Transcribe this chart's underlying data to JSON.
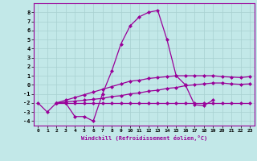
{
  "xlabel": "Windchill (Refroidissement éolien,°C)",
  "background_color": "#c2e8e8",
  "grid_color": "#a8d0d0",
  "line_color": "#990099",
  "xlim": [
    -0.5,
    23.5
  ],
  "ylim": [
    -4.5,
    9.0
  ],
  "xticks": [
    0,
    1,
    2,
    3,
    4,
    5,
    6,
    7,
    8,
    9,
    10,
    11,
    12,
    13,
    14,
    15,
    16,
    17,
    18,
    19,
    20,
    21,
    22,
    23
  ],
  "yticks": [
    -4,
    -3,
    -2,
    -1,
    0,
    1,
    2,
    3,
    4,
    5,
    6,
    7,
    8
  ],
  "series1_x": [
    0,
    1,
    2,
    3,
    4,
    5,
    6,
    7,
    8,
    9,
    10,
    11,
    12,
    13,
    14,
    15,
    16,
    17,
    18,
    19
  ],
  "series1_y": [
    -2.0,
    -3.0,
    -2.0,
    -2.0,
    -3.5,
    -3.5,
    -4.0,
    -1.0,
    1.5,
    4.5,
    6.5,
    7.5,
    8.0,
    8.2,
    5.0,
    1.0,
    0.0,
    -2.2,
    -2.3,
    -1.7
  ],
  "series2_x": [
    2,
    3,
    4,
    5,
    6,
    7,
    8,
    9,
    10,
    11,
    12,
    13,
    14,
    15,
    16,
    17,
    18,
    19,
    20,
    21,
    22,
    23
  ],
  "series2_y": [
    -2.0,
    -2.0,
    -2.0,
    -2.0,
    -2.0,
    -2.0,
    -2.0,
    -2.0,
    -2.0,
    -2.0,
    -2.0,
    -2.0,
    -2.0,
    -2.0,
    -2.0,
    -2.0,
    -2.0,
    -2.0,
    -2.0,
    -2.0,
    -2.0,
    -2.0
  ],
  "series3_x": [
    2,
    3,
    4,
    5,
    6,
    7,
    8,
    9,
    10,
    11,
    12,
    13,
    14,
    15,
    16,
    17,
    18,
    19,
    20,
    21,
    22,
    23
  ],
  "series3_y": [
    -2.0,
    -1.9,
    -1.8,
    -1.7,
    -1.6,
    -1.5,
    -1.3,
    -1.2,
    -1.0,
    -0.9,
    -0.7,
    -0.6,
    -0.4,
    -0.3,
    -0.1,
    0.0,
    0.1,
    0.2,
    0.2,
    0.1,
    0.05,
    0.1
  ],
  "series4_x": [
    2,
    3,
    4,
    5,
    6,
    7,
    8,
    9,
    10,
    11,
    12,
    13,
    14,
    15,
    16,
    17,
    18,
    19,
    20,
    21,
    22,
    23
  ],
  "series4_y": [
    -2.0,
    -1.7,
    -1.4,
    -1.1,
    -0.8,
    -0.5,
    -0.2,
    0.1,
    0.4,
    0.5,
    0.7,
    0.8,
    0.9,
    1.0,
    1.0,
    1.0,
    1.0,
    1.0,
    0.9,
    0.85,
    0.8,
    0.9
  ],
  "marker": "D",
  "markersize": 2.0,
  "linewidth": 0.9
}
